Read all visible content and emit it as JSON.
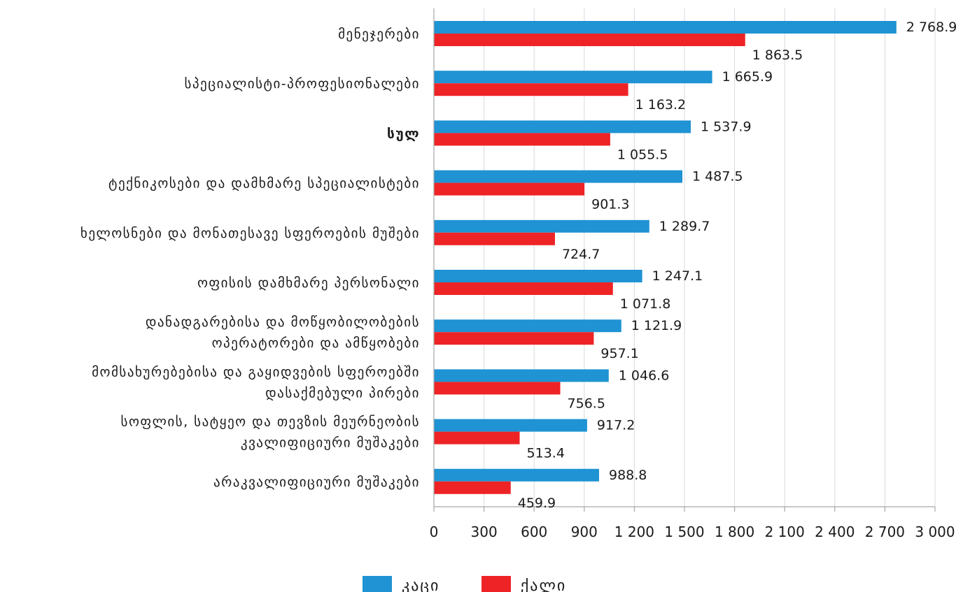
{
  "chart_data": {
    "type": "bar",
    "orientation": "horizontal",
    "categories": [
      [
        "მენეჯერები"
      ],
      [
        "სპეციალისტი-პროფესიონალები"
      ],
      [
        "სულ"
      ],
      [
        "ტექნიკოსები და დამხმარე სპეციალისტები"
      ],
      [
        "ხელოსნები და მონათესავე სფეროების მუშები"
      ],
      [
        "ოფისის დამხმარე პერსონალი"
      ],
      [
        "დანადგარებისა და მოწყობილობების",
        "ოპერატორები და ამწყობები"
      ],
      [
        "მომსახურებებისა და გაყიდვების სფეროებში",
        "დასაქმებული პირები"
      ],
      [
        "სოფლის, სატყეო და თევზის მეურნეობის",
        "კვალიფიციური მუშაკები"
      ],
      [
        "არაკვალიფიციური მუშაკები"
      ]
    ],
    "bold_category": "სულ",
    "series": [
      {
        "name": "კაცი",
        "color": "#1f93d3",
        "values": [
          2768.9,
          1665.9,
          1537.9,
          1487.5,
          1289.7,
          1247.1,
          1121.9,
          1046.6,
          917.2,
          988.8
        ],
        "labels": [
          "2 768.9",
          "1 665.9",
          "1 537.9",
          "1 487.5",
          "1 289.7",
          "1 247.1",
          "1 121.9",
          "1 046.6",
          "917.2",
          "988.8"
        ]
      },
      {
        "name": "ქალი",
        "color": "#ee2326",
        "values": [
          1863.5,
          1163.2,
          1055.5,
          901.3,
          724.7,
          1071.8,
          957.1,
          756.5,
          513.4,
          459.9
        ],
        "labels": [
          "1 863.5",
          "1 163.2",
          "1 055.5",
          "901.3",
          "724.7",
          "1 071.8",
          "957.1",
          "756.5",
          "513.4",
          "459.9"
        ]
      }
    ],
    "xlim": [
      0,
      3000
    ],
    "xticks": [
      0,
      300,
      600,
      900,
      1200,
      1500,
      1800,
      2100,
      2400,
      2700,
      3000
    ],
    "xtick_labels": [
      "0",
      "300",
      "600",
      "900",
      "1 200",
      "1 500",
      "1 800",
      "2 100",
      "2 400",
      "2 700",
      "3 000"
    ],
    "grid": "vertical",
    "legend_position": "bottom-center"
  }
}
